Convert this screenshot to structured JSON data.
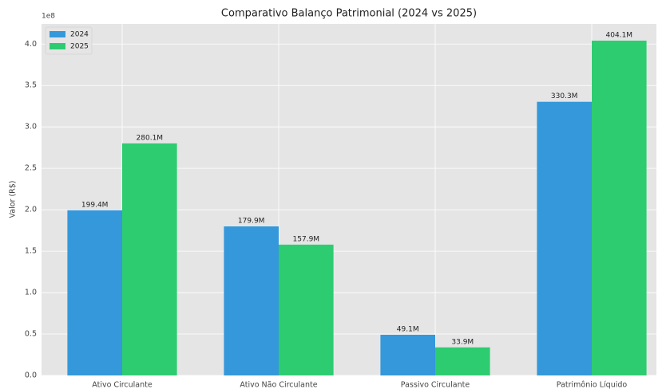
{
  "chart_data": {
    "type": "bar",
    "title": "Comparativo Balanço Patrimonial (2024 vs 2025)",
    "y_label": "Valor (R$)",
    "y_offset_label": "1e8",
    "categories": [
      "Ativo Circulante",
      "Ativo Não Circulante",
      "Passivo Circulante",
      "Patrimônio Líquido"
    ],
    "series": [
      {
        "name": "2024",
        "color": "#3498db",
        "values": [
          1.994,
          1.799,
          0.491,
          3.303
        ],
        "value_labels": [
          "199.4M",
          "179.9M",
          "49.1M",
          "330.3M"
        ]
      },
      {
        "name": "2025",
        "color": "#2ecc71",
        "values": [
          2.801,
          1.579,
          0.339,
          4.041
        ],
        "value_labels": [
          "280.1M",
          "157.9M",
          "33.9M",
          "404.1M"
        ]
      }
    ],
    "ylim": [
      0,
      4.243
    ],
    "yticks": [
      {
        "value": 0,
        "label": "0.0"
      },
      0.5,
      {
        "value": 1,
        "label": "1.0"
      },
      1.5,
      {
        "value": 2,
        "label": "2.0"
      },
      2.5,
      {
        "value": 3,
        "label": "3.0"
      },
      3.5,
      {
        "value": 4,
        "label": "4.0"
      }
    ],
    "grid": true,
    "legend": "upper-left"
  }
}
